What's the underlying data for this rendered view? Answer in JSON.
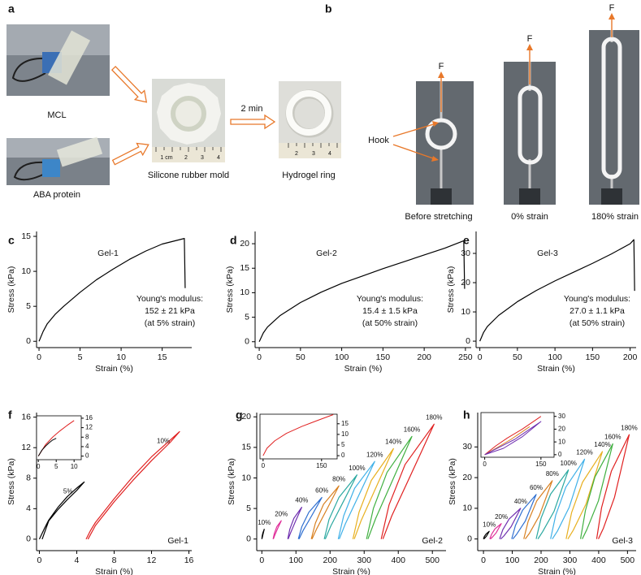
{
  "panel_a": {
    "label": "a",
    "mcl": "MCL",
    "aba": "ABA protein",
    "mold": "Silicone rubber mold",
    "time": "2 min",
    "ring": "Hydrogel ring",
    "mold_ruler": [
      "1 cm",
      "2",
      "3",
      "4"
    ],
    "ring_ruler": [
      "2",
      "3",
      "4"
    ]
  },
  "panel_b": {
    "label": "b",
    "forces": [
      "F",
      "F",
      "F"
    ],
    "hook": "Hook",
    "captions": [
      "Before stretching",
      "0% strain",
      "180% strain"
    ]
  },
  "chart_data": [
    {
      "type": "line",
      "panel": "c",
      "xlabel": "Strain (%)",
      "ylabel": "Stress (kPa)",
      "gel_label": "Gel-1",
      "modulus": [
        "Young's modulus:",
        "152 ± 21 kPa",
        "(at 5% strain)"
      ],
      "xlim": [
        -0.3,
        18.6
      ],
      "ylim": [
        -0.9,
        15.7
      ],
      "xticks": [
        0,
        5,
        10,
        15
      ],
      "yticks": [
        0,
        5,
        10,
        15
      ],
      "series": [
        {
          "color": "#000000",
          "x": [
            0,
            0.5,
            1,
            2,
            3,
            5,
            7,
            9,
            11,
            13,
            15,
            17.7,
            17.8
          ],
          "values": [
            0,
            1.4,
            2.5,
            3.9,
            5,
            7,
            8.8,
            10.3,
            11.7,
            12.9,
            13.9,
            14.7,
            7.6
          ]
        }
      ]
    },
    {
      "type": "line",
      "panel": "d",
      "xlabel": "Strain (%)",
      "ylabel": "Stress (kPa)",
      "gel_label": "Gel-2",
      "modulus": [
        "Young's modulus:",
        "15.4 ± 1.5 kPa",
        "(at 50% strain)"
      ],
      "xlim": [
        -5,
        257
      ],
      "ylim": [
        -1.2,
        22.5
      ],
      "xticks": [
        0,
        50,
        100,
        150,
        200,
        250
      ],
      "yticks": [
        0,
        5,
        10,
        15,
        20
      ],
      "series": [
        {
          "color": "#000000",
          "x": [
            0,
            5,
            10,
            25,
            50,
            75,
            100,
            125,
            150,
            175,
            200,
            225,
            248,
            249
          ],
          "values": [
            0,
            1.8,
            3,
            5.3,
            8,
            10.1,
            11.9,
            13.4,
            14.9,
            16.3,
            17.7,
            19.1,
            20.6,
            10.8
          ]
        }
      ]
    },
    {
      "type": "line",
      "panel": "e",
      "xlabel": "Strain (%)",
      "ylabel": "Stress (kPa)",
      "gel_label": "Gel-3",
      "modulus": [
        "Young's modulus:",
        "27.0 ± 1.1 kPa",
        "(at 50% strain)"
      ],
      "xlim": [
        -5,
        208
      ],
      "ylim": [
        -2.2,
        37.5
      ],
      "xticks": [
        0,
        50,
        100,
        150,
        200
      ],
      "yticks": [
        0,
        10,
        20,
        30
      ],
      "series": [
        {
          "color": "#000000",
          "x": [
            0,
            5,
            10,
            25,
            50,
            75,
            100,
            125,
            150,
            175,
            200,
            205,
            206
          ],
          "values": [
            0,
            3,
            5,
            8.8,
            13.5,
            17.3,
            20.6,
            23.6,
            26.6,
            29.8,
            33.3,
            34.7,
            17.2
          ]
        }
      ]
    },
    {
      "type": "line",
      "panel": "f",
      "xlabel": "Strain (%)",
      "ylabel": "Stress (kPa)",
      "gel_label": "Gel-1",
      "xlim": [
        -0.3,
        16.3
      ],
      "ylim": [
        -1.5,
        16.6
      ],
      "xticks": [
        0,
        4,
        8,
        12,
        16
      ],
      "yticks": [
        0,
        4,
        8,
        12,
        16
      ],
      "series": [
        {
          "name": "5%",
          "color": "#000000",
          "x": [
            0,
            0.5,
            1,
            2,
            3,
            4,
            4.8,
            4,
            3,
            2,
            1,
            0.3
          ],
          "values": [
            0,
            1.3,
            2.5,
            4.2,
            5.6,
            6.7,
            7.5,
            6.4,
            5.2,
            3.9,
            2.4,
            0
          ]
        },
        {
          "name": "10%",
          "color": "#e02020",
          "x": [
            5,
            5.5,
            6,
            8,
            10,
            12,
            14,
            15,
            14,
            12,
            10,
            8,
            6,
            5.2
          ],
          "values": [
            0,
            1.2,
            2.2,
            5.3,
            8.2,
            10.8,
            13,
            14.1,
            12.7,
            10.3,
            7.7,
            4.9,
            1.8,
            0
          ]
        }
      ],
      "inset": {
        "xlim": [
          -0.5,
          12
        ],
        "ylim": [
          -1.5,
          17
        ],
        "xticks": [
          0,
          5,
          10
        ],
        "yticks": [
          0,
          4,
          8,
          12,
          16
        ],
        "series": [
          {
            "color": "#e02020",
            "x": [
              0,
              2,
              4,
              6,
              8,
              10
            ],
            "values": [
              0,
              4.8,
              8,
              10.6,
              12.9,
              15
            ]
          },
          {
            "color": "#000000",
            "x": [
              0,
              1,
              2,
              3,
              4,
              5
            ],
            "values": [
              0,
              2.5,
              4.2,
              5.6,
              6.8,
              7.5
            ]
          }
        ]
      }
    },
    {
      "type": "line",
      "panel": "g",
      "xlabel": "Strain (%)",
      "ylabel": "Stress (kPa)",
      "gel_label": "Gel-2",
      "xlim": [
        -15,
        540
      ],
      "ylim": [
        -1.9,
        20.7
      ],
      "xticks": [
        0,
        100,
        200,
        300,
        400,
        500
      ],
      "yticks": [
        0,
        5,
        10,
        15,
        20
      ],
      "series": [
        {
          "name": "10%",
          "color": "#000000",
          "x": [
            0,
            1,
            3,
            7,
            3.9,
            1.4,
            0.2
          ],
          "values": [
            0,
            0.5,
            1,
            1.6,
            0.9,
            0.3,
            0
          ]
        },
        {
          "name": "20%",
          "color": "#e0309a",
          "x": [
            33,
            36.6,
            43.8,
            57,
            46.2,
            37.8,
            33.7
          ],
          "values": [
            0,
            0.9,
            2,
            3,
            1.7,
            0.6,
            0
          ]
        },
        {
          "name": "40%",
          "color": "#7030b0",
          "x": [
            76,
            82,
            94,
            117,
            98.6,
            84.2,
            77.2
          ],
          "values": [
            0,
            1.6,
            3.4,
            5.2,
            2.9,
            1,
            0
          ]
        },
        {
          "name": "60%",
          "color": "#2f6fd0",
          "x": [
            107,
            117,
            138,
            176,
            145,
            121,
            109
          ],
          "values": [
            0,
            2,
            4.4,
            6.8,
            3.7,
            1.4,
            0
          ]
        },
        {
          "name": "80%",
          "color": "#d88020",
          "x": [
            145,
            157,
            181,
            226,
            190,
            161,
            147
          ],
          "values": [
            0,
            2.6,
            5.7,
            8.7,
            4.8,
            1.7,
            0
          ]
        },
        {
          "name": "100%",
          "color": "#2aa8a0",
          "x": [
            183,
            197,
            226,
            279,
            236,
            202,
            186
          ],
          "values": [
            0,
            3.2,
            6.8,
            10.5,
            5.8,
            2.1,
            0
          ]
        },
        {
          "name": "120%",
          "color": "#3fb0e8",
          "x": [
            224,
            240,
            272,
            331,
            283,
            245,
            227
          ],
          "values": [
            0,
            3.8,
            8.3,
            12.7,
            7,
            2.5,
            0
          ]
        },
        {
          "name": "140%",
          "color": "#e8b020",
          "x": [
            267,
            285,
            321,
            386,
            332,
            291,
            271
          ],
          "values": [
            0,
            4.4,
            9.6,
            14.8,
            8.1,
            3,
            0
          ]
        },
        {
          "name": "160%",
          "color": "#40b040",
          "x": [
            307,
            327,
            367,
            440,
            380,
            334,
            311
          ],
          "values": [
            0,
            5,
            10.9,
            16.8,
            9.2,
            3.4,
            0
          ]
        },
        {
          "name": "180%",
          "color": "#e02020",
          "x": [
            350,
            373,
            420,
            505,
            435,
            381,
            355
          ],
          "values": [
            0,
            5.6,
            12.2,
            18.8,
            10.3,
            3.8,
            0
          ]
        }
      ],
      "inset": {
        "xlim": [
          -8,
          190
        ],
        "ylim": [
          -1.5,
          19.5
        ],
        "xticks": [
          0,
          150
        ],
        "yticks": [
          0,
          5,
          10,
          15
        ],
        "series": [
          {
            "color": "#e02020",
            "x": [
              0,
              10,
              30,
              60,
              100,
              140,
              180
            ],
            "values": [
              0,
              3.5,
              7,
              10.5,
              13.8,
              16.6,
              19.3
            ]
          }
        ]
      }
    },
    {
      "type": "line",
      "panel": "h",
      "xlabel": "Strain (%)",
      "ylabel": "Stress (kPa)",
      "gel_label": "Gel-3",
      "xlim": [
        -20,
        530
      ],
      "ylim": [
        -3.8,
        41.2
      ],
      "xticks": [
        0,
        100,
        200,
        300,
        400,
        500
      ],
      "yticks": [
        0,
        10,
        20,
        30
      ],
      "series": [
        {
          "name": "10%",
          "color": "#000000",
          "x": [
            0,
            3,
            9,
            20,
            11,
            4,
            1
          ],
          "values": [
            0,
            0.8,
            1.6,
            2.5,
            1,
            0.25,
            0
          ]
        },
        {
          "name": "20%",
          "color": "#e0309a",
          "x": [
            22,
            28,
            40,
            62,
            44,
            30,
            24
          ],
          "values": [
            0,
            1.5,
            3.3,
            5,
            2,
            0.5,
            0
          ]
        },
        {
          "name": "40%",
          "color": "#7030b0",
          "x": [
            56,
            67,
            89,
            129,
            96,
            71,
            60
          ],
          "values": [
            0,
            3,
            6.5,
            10,
            4,
            1,
            0
          ]
        },
        {
          "name": "60%",
          "color": "#2f6fd0",
          "x": [
            98,
            111,
            136,
            183,
            145,
            115,
            102
          ],
          "values": [
            0,
            4.4,
            9.4,
            14.5,
            5.8,
            1.5,
            0
          ]
        },
        {
          "name": "80%",
          "color": "#d88020",
          "x": [
            140,
            155,
            185,
            239,
            194,
            160,
            145
          ],
          "values": [
            0,
            5.7,
            12.4,
            19,
            7.6,
            1.9,
            0
          ]
        },
        {
          "name": "100%",
          "color": "#2aa8a0",
          "x": [
            183,
            200,
            233,
            295,
            245,
            205,
            189
          ],
          "values": [
            0,
            6.8,
            14.6,
            22.5,
            9,
            2.3,
            0
          ]
        },
        {
          "name": "120%",
          "color": "#3fb0e8",
          "x": [
            233,
            251,
            286,
            351,
            298,
            257,
            239
          ],
          "values": [
            0,
            7.8,
            16.9,
            26,
            10.4,
            2.6,
            0
          ]
        },
        {
          "name": "140%",
          "color": "#e8b020",
          "x": [
            287,
            306,
            344,
            413,
            356,
            312,
            293
          ],
          "values": [
            0,
            8.6,
            18.5,
            28.5,
            11.4,
            2.9,
            0
          ]
        },
        {
          "name": "160%",
          "color": "#40b040",
          "x": [
            337,
            354,
            387,
            449,
            399,
            359,
            343
          ],
          "values": [
            0,
            9.3,
            20.2,
            31,
            12.4,
            3.1,
            0
          ]
        },
        {
          "name": "180%",
          "color": "#e02020",
          "x": [
            393,
            410,
            444,
            506,
            455,
            416,
            399
          ],
          "values": [
            0,
            10.2,
            22.1,
            34,
            13.6,
            3.4,
            0
          ]
        }
      ],
      "inset": {
        "xlim": [
          -10,
          185
        ],
        "ylim": [
          -2,
          33
        ],
        "xticks": [
          0,
          150
        ],
        "yticks": [
          0,
          10,
          20,
          30
        ],
        "series": [
          {
            "color": "#e02020",
            "x": [
              0,
              30,
              60,
              100,
              150
            ],
            "values": [
              0,
              7,
              13,
              20,
              30
            ]
          },
          {
            "color": "#d88020",
            "x": [
              0,
              30,
              70,
              120
            ],
            "values": [
              0,
              5,
              12,
              22
            ]
          },
          {
            "color": "#7030b0",
            "x": [
              0,
              40,
              80,
              130,
              150,
              100,
              50,
              0
            ],
            "values": [
              0,
              6,
              12,
              22,
              26,
              14,
              5,
              0
            ]
          }
        ]
      }
    }
  ]
}
